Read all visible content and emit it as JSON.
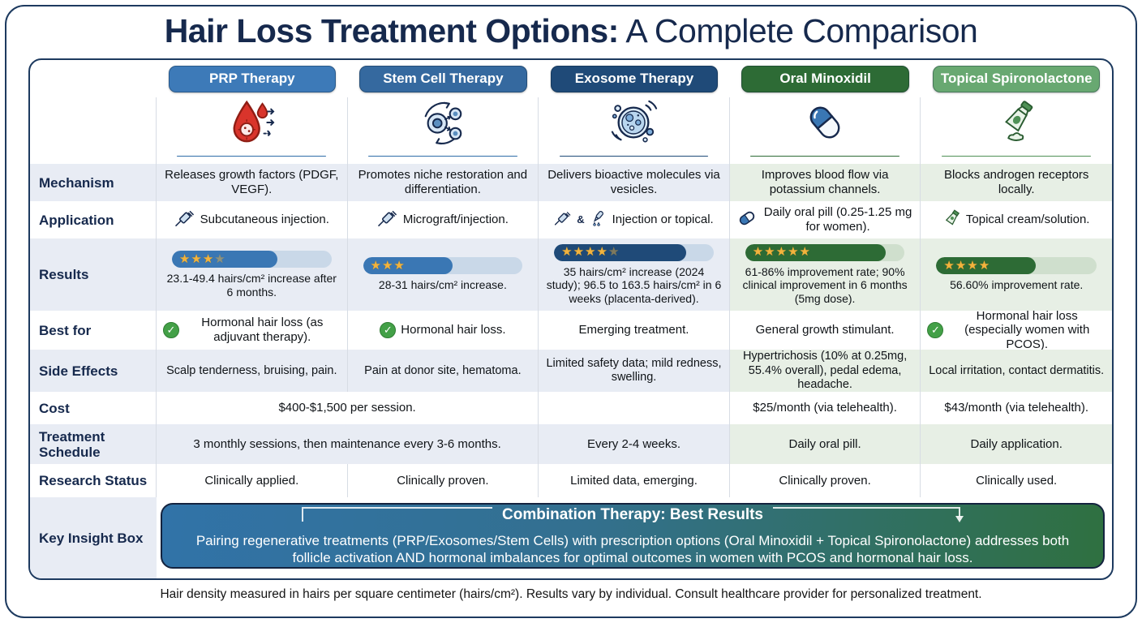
{
  "page": {
    "title_bold": "Hair Loss Treatment Options:",
    "title_regular": " A Complete Comparison",
    "footnote": "Hair density measured in hairs per square centimeter (hairs/cm²). Results vary by individual. Consult healthcare provider for personalized treatment."
  },
  "glyphs": {
    "check": "✓",
    "star": "★",
    "ampersand": "&"
  },
  "row_labels": {
    "mechanism": "Mechanism",
    "application": "Application",
    "results": "Results",
    "best_for": "Best for",
    "side_effects": "Side Effects",
    "cost": "Cost",
    "schedule": "Treatment Schedule",
    "research": "Research Status",
    "insight": "Key Insight Box"
  },
  "columns": [
    {
      "name": "PRP Therapy",
      "header_color": "#3d7ab8",
      "accent_color": "#2e6da8",
      "icon": "blood-drop-icon",
      "application_icon": "syringe-icon",
      "mechanism": "Releases growth factors (PDGF, VEGF).",
      "application": "Subcutaneous injection.",
      "rating": {
        "stars": 3.5,
        "fill_pct": 66,
        "bar_color": "#3a77b4",
        "track_color": "#c9d8e8"
      },
      "results": "23.1-49.4 hairs/cm² increase after 6 months.",
      "best_for": "Hormonal hair loss (as adjuvant therapy).",
      "best_for_check": true,
      "side_effects": "Scalp tenderness, bruising, pain.",
      "research": "Clinically applied."
    },
    {
      "name": "Stem Cell Therapy",
      "header_color": "#35699f",
      "accent_color": "#2e6da8",
      "icon": "stem-cell-icon",
      "application_icon": "syringe-icon",
      "mechanism": "Promotes niche restoration and differentiation.",
      "application": "Micrograft/injection.",
      "rating": {
        "stars": 3,
        "fill_pct": 56,
        "bar_color": "#3a77b4",
        "track_color": "#c9d8e8"
      },
      "results": "28-31 hairs/cm² increase.",
      "best_for": "Hormonal hair loss.",
      "best_for_check": true,
      "side_effects": "Pain at donor site, hematoma.",
      "research": "Clinically proven."
    },
    {
      "name": "Exosome Therapy",
      "header_color": "#1f4a78",
      "accent_color": "#1f4a78",
      "icon": "exosome-vesicle-icon",
      "application_icon": "syringe-and-dropper-icon",
      "mechanism": "Delivers bioactive molecules via vesicles.",
      "application": "Injection or topical.",
      "rating": {
        "stars": 4.5,
        "fill_pct": 83,
        "bar_color": "#1f4a78",
        "track_color": "#c9d8e8"
      },
      "results": "35 hairs/cm² increase (2024 study); 96.5 to 163.5 hairs/cm² in 6 weeks (placenta-derived).",
      "best_for": "Emerging treatment.",
      "best_for_check": false,
      "side_effects": "Limited safety data; mild redness, swelling.",
      "cost": "",
      "schedule": "Every 2-4 weeks.",
      "research": "Limited data, emerging."
    },
    {
      "name": "Oral Minoxidil",
      "header_color": "#2d6b35",
      "accent_color": "#2d6b35",
      "icon": "capsule-pill-icon",
      "application_icon": "capsule-pill-icon",
      "mechanism": "Improves blood flow via potassium channels.",
      "application": "Daily oral pill (0.25-1.25 mg for women).",
      "rating": {
        "stars": 5,
        "fill_pct": 88,
        "bar_color": "#2d6b35",
        "track_color": "#cfdfcd"
      },
      "results": "61-86% improvement rate; 90% clinical improvement in 6 months (5mg dose).",
      "best_for": "General growth stimulant.",
      "best_for_check": false,
      "side_effects": "Hypertrichosis (10% at 0.25mg, 55.4% overall), pedal edema, headache.",
      "cost": "$25/month (via telehealth).",
      "schedule": "Daily oral pill.",
      "research": "Clinically proven."
    },
    {
      "name": "Topical Spironolactone",
      "header_color": "#68a871",
      "accent_color": "#4f9156",
      "icon": "cream-tube-icon",
      "application_icon": "cream-tube-icon",
      "mechanism": "Blocks androgen receptors locally.",
      "application": "Topical cream/solution.",
      "rating": {
        "stars": 4,
        "fill_pct": 62,
        "bar_color": "#2d6b35",
        "track_color": "#cfdfcd"
      },
      "results": "56.60% improvement rate.",
      "best_for": "Hormonal hair loss (especially women with PCOS).",
      "best_for_check": true,
      "side_effects": "Local irritation, contact dermatitis.",
      "cost": "$43/month (via telehealth).",
      "schedule": "Daily application.",
      "research": "Clinically used."
    }
  ],
  "merged": {
    "cost_span": "$400-$1,500 per session.",
    "schedule_span": "3 monthly sessions, then maintenance every 3-6 months."
  },
  "insight_box": {
    "title": "Combination Therapy: Best Results",
    "body": "Pairing regenerative treatments (PRP/Exosomes/Stem Cells) with prescription options (Oral Minoxidil + Topical Spironolactone) addresses both follicle activation AND hormonal imbalances for optimal outcomes in women with PCOS and hormonal hair loss.",
    "gradient_left": "#3173a8",
    "gradient_right": "#2f7040"
  },
  "chart_data": {
    "type": "table",
    "title": "Hair Loss Treatment Options: A Complete Comparison",
    "columns": [
      "",
      "PRP Therapy",
      "Stem Cell Therapy",
      "Exosome Therapy",
      "Oral Minoxidil",
      "Topical Spironolactone"
    ],
    "rows": [
      [
        "Mechanism",
        "Releases growth factors (PDGF, VEGF).",
        "Promotes niche restoration and differentiation.",
        "Delivers bioactive molecules via vesicles.",
        "Improves blood flow via potassium channels.",
        "Blocks androgen receptors locally."
      ],
      [
        "Application",
        "Subcutaneous injection.",
        "Micrograft/injection.",
        "Injection or topical.",
        "Daily oral pill (0.25-1.25 mg for women).",
        "Topical cream/solution."
      ],
      [
        "Results",
        "23.1-49.4 hairs/cm² increase after 6 months.",
        "28-31 hairs/cm² increase.",
        "35 hairs/cm² increase (2024 study); 96.5 to 163.5 hairs/cm² in 6 weeks (placenta-derived).",
        "61-86% improvement rate; 90% clinical improvement in 6 months (5mg dose).",
        "56.60% improvement rate."
      ],
      [
        "Best for",
        "Hormonal hair loss (as adjuvant therapy).",
        "Hormonal hair loss.",
        "Emerging treatment.",
        "General growth stimulant.",
        "Hormonal hair loss (especially women with PCOS)."
      ],
      [
        "Side Effects",
        "Scalp tenderness, bruising, pain.",
        "Pain at donor site, hematoma.",
        "Limited safety data; mild redness, swelling.",
        "Hypertrichosis (10% at 0.25mg, 55.4% overall), pedal edema, headache.",
        "Local irritation, contact dermatitis."
      ],
      [
        "Cost",
        "$400-$1,500 per session.",
        "$400-$1,500 per session.",
        "",
        "$25/month (via telehealth).",
        "$43/month (via telehealth)."
      ],
      [
        "Treatment Schedule",
        "3 monthly sessions, then maintenance every 3-6 months.",
        "3 monthly sessions, then maintenance every 3-6 months.",
        "Every 2-4 weeks.",
        "Daily oral pill.",
        "Daily application."
      ],
      [
        "Research Status",
        "Clinically applied.",
        "Clinically proven.",
        "Limited data, emerging.",
        "Clinically proven.",
        "Clinically used."
      ],
      [
        "Key Insight Box",
        "Combination Therapy: Best Results — Pairing regenerative treatments (PRP/Exosomes/Stem Cells) with prescription options (Oral Minoxidil + Topical Spironolactone) addresses both follicle activation AND hormonal imbalances for optimal outcomes in women with PCOS and hormonal hair loss.",
        "",
        "",
        "",
        ""
      ]
    ],
    "star_ratings": [
      3.5,
      3,
      4.5,
      5,
      4
    ],
    "bar_fill_percent": [
      66,
      56,
      83,
      88,
      62
    ]
  }
}
